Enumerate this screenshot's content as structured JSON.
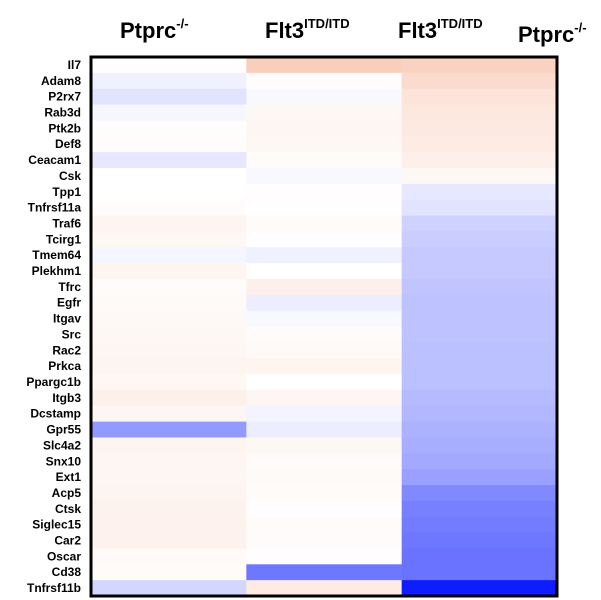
{
  "chart_data": {
    "type": "heatmap",
    "columns": [
      {
        "base": "Ptprc",
        "sup": "-/-"
      },
      {
        "base": "Flt3",
        "sup": "ITD/ITD"
      },
      {
        "base": "Flt3",
        "sup": "ITD/ITD",
        "base2": "Ptprc",
        "sup2": "-/-"
      }
    ],
    "rows": [
      "Il7",
      "Adam8",
      "P2rx7",
      "Rab3d",
      "Ptk2b",
      "Def8",
      "Ceacam1",
      "Csk",
      "Tpp1",
      "Tnfrsf11a",
      "Traf6",
      "Tcirg1",
      "Tmem64",
      "Plekhm1",
      "Tfrc",
      "Egfr",
      "Itgav",
      "Src",
      "Rac2",
      "Prkca",
      "Ppargc1b",
      "Itgb3",
      "Dcstamp",
      "Gpr55",
      "Slc4a2",
      "Snx10",
      "Ext1",
      "Acp5",
      "Ctsk",
      "Siglec15",
      "Car2",
      "Oscar",
      "Cd38",
      "Tnfrsf11b"
    ],
    "values": [
      [
        0.02,
        0.55,
        0.5
      ],
      [
        -0.06,
        0.03,
        0.4
      ],
      [
        -0.12,
        -0.03,
        0.3
      ],
      [
        -0.04,
        0.08,
        0.26
      ],
      [
        0.02,
        0.1,
        0.24
      ],
      [
        0.03,
        0.08,
        0.22
      ],
      [
        -0.1,
        0.05,
        0.18
      ],
      [
        0.0,
        -0.03,
        0.08
      ],
      [
        0.0,
        0.02,
        -0.1
      ],
      [
        0.03,
        0.0,
        -0.12
      ],
      [
        0.12,
        0.05,
        -0.2
      ],
      [
        0.08,
        0.02,
        -0.22
      ],
      [
        -0.04,
        -0.06,
        -0.24
      ],
      [
        0.12,
        0.0,
        -0.24
      ],
      [
        0.04,
        0.18,
        -0.26
      ],
      [
        0.06,
        -0.08,
        -0.27
      ],
      [
        0.07,
        -0.03,
        -0.27
      ],
      [
        0.08,
        0.04,
        -0.27
      ],
      [
        0.1,
        0.06,
        -0.28
      ],
      [
        0.12,
        0.12,
        -0.28
      ],
      [
        0.09,
        0.0,
        -0.28
      ],
      [
        0.18,
        0.1,
        -0.3
      ],
      [
        0.1,
        -0.05,
        -0.32
      ],
      [
        -0.45,
        -0.08,
        -0.34
      ],
      [
        0.12,
        0.08,
        -0.36
      ],
      [
        0.1,
        0.04,
        -0.38
      ],
      [
        0.1,
        0.06,
        -0.42
      ],
      [
        0.12,
        0.04,
        -0.52
      ],
      [
        0.14,
        0.02,
        -0.56
      ],
      [
        0.15,
        0.05,
        -0.58
      ],
      [
        0.14,
        0.04,
        -0.6
      ],
      [
        0.06,
        0.02,
        -0.62
      ],
      [
        0.05,
        -0.6,
        -0.62
      ],
      [
        -0.18,
        0.22,
        -1.0
      ]
    ],
    "colors": {
      "positive": "#f4a582",
      "negative": "#0d1dff",
      "neutral": "#ffffff",
      "border": "#000000"
    }
  }
}
